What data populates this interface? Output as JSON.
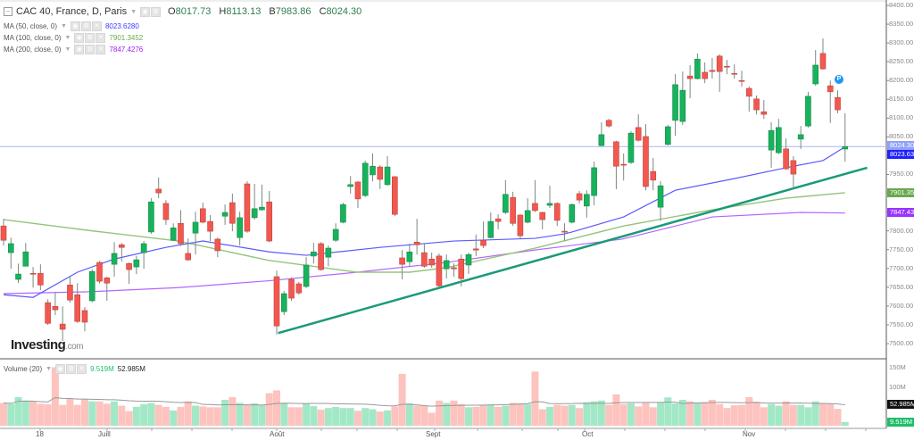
{
  "header": {
    "title": "CAC 40, France, D, Paris",
    "open_label": "O",
    "open": "8017.73",
    "high_label": "H",
    "high": "8113.13",
    "low_label": "B",
    "low": "7983.86",
    "close_label": "C",
    "close": "8024.30"
  },
  "indicators": [
    {
      "label": "MA (50, close, 0)",
      "value": "8023.6280",
      "color": "#3b3bff"
    },
    {
      "label": "MA (100, close, 0)",
      "value": "7901.3452",
      "color": "#6aa84f"
    },
    {
      "label": "MA (200, close, 0)",
      "value": "7847.4276",
      "color": "#a020f0"
    }
  ],
  "volume_legend": {
    "label": "Volume (20)",
    "current": "9.519M",
    "average": "52.985M"
  },
  "price_axis": [
    "8400.00",
    "8350.00",
    "8300.00",
    "8250.00",
    "8200.00",
    "8150.00",
    "8100.00",
    "8050.00",
    "7950.00",
    "7800.00",
    "7750.00",
    "7700.00",
    "7650.00",
    "7600.00",
    "7550.00",
    "7500.00"
  ],
  "price_tags": {
    "last": "8024.30",
    "ma50": "8023.63",
    "ma100": "7901.35",
    "ma200": "7847.43"
  },
  "volume_axis": [
    "150M",
    "100M"
  ],
  "volume_tags": {
    "average": "52.985M",
    "current": "9.519M"
  },
  "x_labels": [
    "18",
    "Juill",
    "Août",
    "Sept",
    "Oct",
    "Nov"
  ],
  "marker": "P",
  "logo": {
    "main": "Investing",
    "suffix": "com"
  },
  "colors": {
    "up": "#17b35c",
    "down": "#f2584f",
    "vol_up": "#a3e8c6",
    "vol_down": "#fdc3be",
    "trend": "#1a9a78",
    "last_line": "#aab4f5"
  },
  "chart_data": {
    "type": "candlestick",
    "ylim": [
      7500,
      8400
    ],
    "candles": [
      [
        7813,
        7832,
        7761,
        7775
      ],
      [
        7742,
        7782,
        7699,
        7766
      ],
      [
        7671,
        7713,
        7661,
        7685
      ],
      [
        7706,
        7768,
        7706,
        7744
      ],
      [
        7687,
        7704,
        7649,
        7685
      ],
      [
        7687,
        7711,
        7642,
        7656
      ],
      [
        7609,
        7618,
        7550,
        7554
      ],
      [
        7599,
        7637,
        7576,
        7590
      ],
      [
        7552,
        7599,
        7507,
        7538
      ],
      [
        7656,
        7678,
        7609,
        7616
      ],
      [
        7630,
        7661,
        7555,
        7559
      ],
      [
        7588,
        7597,
        7533,
        7557
      ],
      [
        7614,
        7697,
        7610,
        7692
      ],
      [
        7716,
        7720,
        7660,
        7666
      ],
      [
        7675,
        7678,
        7614,
        7661
      ],
      [
        7711,
        7770,
        7678,
        7740
      ],
      [
        7763,
        7768,
        7718,
        7756
      ],
      [
        7713,
        7716,
        7659,
        7697
      ],
      [
        7704,
        7733,
        7685,
        7723
      ],
      [
        7742,
        7773,
        7699,
        7766
      ],
      [
        7797,
        7887,
        7792,
        7877
      ],
      [
        7911,
        7942,
        7887,
        7901
      ],
      [
        7873,
        7882,
        7816,
        7830
      ],
      [
        7775,
        7820,
        7773,
        7808
      ],
      [
        7820,
        7855,
        7760,
        7766
      ],
      [
        7740,
        7780,
        7720,
        7723
      ],
      [
        7794,
        7851,
        7737,
        7823
      ],
      [
        7859,
        7875,
        7820,
        7823
      ],
      [
        7825,
        7842,
        7773,
        7799
      ],
      [
        7778,
        7782,
        7730,
        7747
      ],
      [
        7839,
        7870,
        7816,
        7849
      ],
      [
        7875,
        7899,
        7799,
        7820
      ],
      [
        7782,
        7851,
        7761,
        7835
      ],
      [
        7925,
        7932,
        7795,
        7799
      ],
      [
        7835,
        7925,
        7830,
        7859
      ],
      [
        7856,
        7923,
        7854,
        7863
      ],
      [
        7877,
        7906,
        7770,
        7773
      ],
      [
        7678,
        7694,
        7524,
        7547
      ],
      [
        7585,
        7640,
        7576,
        7633
      ],
      [
        7671,
        7676,
        7614,
        7621
      ],
      [
        7659,
        7664,
        7630,
        7635
      ],
      [
        7652,
        7730,
        7648,
        7709
      ],
      [
        7733,
        7768,
        7713,
        7744
      ],
      [
        7766,
        7770,
        7694,
        7697
      ],
      [
        7730,
        7761,
        7706,
        7754
      ],
      [
        7775,
        7820,
        7771,
        7804
      ],
      [
        7823,
        7875,
        7820,
        7870
      ],
      [
        7918,
        7946,
        7899,
        7923
      ],
      [
        7930,
        7932,
        7861,
        7885
      ],
      [
        7894,
        7987,
        7890,
        7980
      ],
      [
        7949,
        8006,
        7932,
        7972
      ],
      [
        7970,
        7975,
        7911,
        7937
      ],
      [
        7923,
        7999,
        7920,
        7970
      ],
      [
        7944,
        7946,
        7839,
        7844
      ],
      [
        7728,
        7749,
        7671,
        7711
      ],
      [
        7718,
        7766,
        7706,
        7744
      ],
      [
        7770,
        7832,
        7737,
        7763
      ],
      [
        7742,
        7766,
        7702,
        7706
      ],
      [
        7725,
        7742,
        7702,
        7709
      ],
      [
        7733,
        7740,
        7649,
        7654
      ],
      [
        7699,
        7737,
        7673,
        7721
      ],
      [
        7702,
        7713,
        7678,
        7699
      ],
      [
        7725,
        7737,
        7652,
        7673
      ],
      [
        7709,
        7742,
        7685,
        7737
      ],
      [
        7752,
        7790,
        7733,
        7749
      ],
      [
        7775,
        7825,
        7754,
        7761
      ],
      [
        7782,
        7849,
        7780,
        7825
      ],
      [
        7832,
        7844,
        7804,
        7825
      ],
      [
        7849,
        7935,
        7845,
        7897
      ],
      [
        7889,
        7904,
        7813,
        7820
      ],
      [
        7842,
        7844,
        7780,
        7787
      ],
      [
        7823,
        7887,
        7820,
        7854
      ],
      [
        7873,
        7935,
        7850,
        7854
      ],
      [
        7849,
        7851,
        7804,
        7830
      ],
      [
        7868,
        7920,
        7861,
        7873
      ],
      [
        7873,
        7876,
        7813,
        7828
      ],
      [
        7799,
        7820,
        7773,
        7797
      ],
      [
        7823,
        7873,
        7820,
        7870
      ],
      [
        7899,
        7906,
        7873,
        7882
      ],
      [
        7866,
        7908,
        7835,
        7897
      ],
      [
        7894,
        7984,
        7868,
        7968
      ],
      [
        8027,
        8089,
        8025,
        8056
      ],
      [
        8094,
        8098,
        8075,
        8079
      ],
      [
        8037,
        8040,
        7911,
        7972
      ],
      [
        7977,
        8006,
        7934,
        7975
      ],
      [
        7982,
        8065,
        7978,
        8060
      ],
      [
        8075,
        8110,
        8038,
        8041
      ],
      [
        8051,
        8084,
        7908,
        7918
      ],
      [
        7958,
        7994,
        7908,
        7935
      ],
      [
        7863,
        7932,
        7827,
        7920
      ],
      [
        8030,
        8082,
        8027,
        8077
      ],
      [
        8094,
        8217,
        8053,
        8189
      ],
      [
        8091,
        8224,
        8082,
        8174
      ],
      [
        8212,
        8241,
        8153,
        8205
      ],
      [
        8205,
        8272,
        8203,
        8257
      ],
      [
        8222,
        8248,
        8193,
        8205
      ],
      [
        8227,
        8260,
        8205,
        8224
      ],
      [
        8265,
        8270,
        8170,
        8224
      ],
      [
        8238,
        8255,
        8217,
        8236
      ],
      [
        8219,
        8243,
        8205,
        8217
      ],
      [
        8200,
        8226,
        8184,
        8198
      ],
      [
        8179,
        8184,
        8117,
        8158
      ],
      [
        8151,
        8160,
        8110,
        8122
      ],
      [
        8117,
        8148,
        8098,
        8110
      ],
      [
        8015,
        8089,
        7968,
        8067
      ],
      [
        8008,
        8098,
        8004,
        8075
      ],
      [
        8018,
        8046,
        7962,
        7965
      ],
      [
        7987,
        7999,
        7911,
        7951
      ],
      [
        8044,
        8079,
        8018,
        8056
      ],
      [
        8079,
        8170,
        8075,
        8158
      ],
      [
        8191,
        8281,
        8186,
        8241
      ],
      [
        8272,
        8312,
        8229,
        8231
      ],
      [
        8186,
        8200,
        8087,
        8170
      ],
      [
        8155,
        8174,
        8113,
        8122
      ],
      [
        8017.73,
        8113.13,
        7983.86,
        8024.3
      ]
    ],
    "volume_millions": [
      58,
      56,
      73,
      64,
      62,
      56,
      55,
      149,
      53,
      68,
      53,
      68,
      62,
      62,
      56,
      62,
      51,
      37,
      48,
      55,
      58,
      53,
      48,
      39,
      48,
      62,
      51,
      49,
      47,
      47,
      66,
      73,
      58,
      53,
      57,
      53,
      83,
      90,
      58,
      47,
      47,
      56,
      50,
      41,
      45,
      48,
      45,
      45,
      38,
      45,
      42,
      36,
      39,
      49,
      132,
      57,
      51,
      51,
      33,
      64,
      58,
      64,
      55,
      47,
      48,
      53,
      53,
      48,
      51,
      58,
      57,
      55,
      138,
      42,
      48,
      53,
      51,
      53,
      45,
      60,
      62,
      64,
      53,
      80,
      55,
      57,
      49,
      58,
      47,
      60,
      72,
      57,
      66,
      62,
      57,
      60,
      66,
      55,
      45,
      52,
      53,
      73,
      61,
      47,
      55,
      51,
      62,
      53,
      53,
      47,
      62,
      56,
      56,
      43,
      9.519
    ],
    "ma50": [
      [
        0,
        7630
      ],
      [
        4,
        7623
      ],
      [
        10,
        7690
      ],
      [
        15,
        7725
      ],
      [
        22,
        7756
      ],
      [
        27,
        7773
      ],
      [
        36,
        7744
      ],
      [
        41,
        7735
      ],
      [
        51,
        7756
      ],
      [
        61,
        7773
      ],
      [
        72,
        7780
      ],
      [
        76,
        7792
      ],
      [
        77,
        7797
      ],
      [
        84,
        7837
      ],
      [
        91,
        7908
      ],
      [
        99,
        7939
      ],
      [
        106,
        7968
      ],
      [
        111,
        7987
      ],
      [
        114,
        8023.63
      ]
    ],
    "ma100": [
      [
        0,
        7830
      ],
      [
        11.6,
        7801
      ],
      [
        23.7,
        7773
      ],
      [
        35.8,
        7722
      ],
      [
        47.9,
        7690
      ],
      [
        55,
        7690
      ],
      [
        60,
        7702
      ],
      [
        72,
        7754
      ],
      [
        84,
        7813
      ],
      [
        96,
        7856
      ],
      [
        106,
        7887
      ],
      [
        114,
        7901.35
      ]
    ],
    "ma200": [
      [
        0,
        7633
      ],
      [
        11.6,
        7638
      ],
      [
        23.7,
        7649
      ],
      [
        35.8,
        7667
      ],
      [
        47.9,
        7690
      ],
      [
        60,
        7716
      ],
      [
        72,
        7749
      ],
      [
        83.8,
        7778
      ],
      [
        96,
        7837
      ],
      [
        108,
        7849
      ],
      [
        114,
        7847.43
      ]
    ],
    "trendline": [
      [
        37.2,
        7528
      ],
      [
        117,
        7968
      ]
    ],
    "last_price": 8024.3,
    "volume_ylim": [
      0,
      160
    ]
  }
}
